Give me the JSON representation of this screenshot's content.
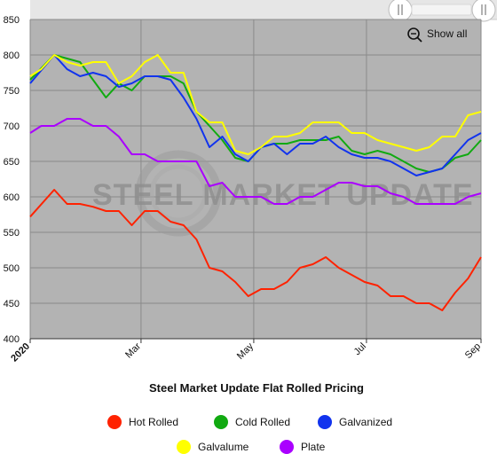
{
  "chart_data": {
    "type": "line",
    "title": "Steel Market Update Flat Rolled Pricing",
    "xlabel": "",
    "ylabel": "",
    "ylim": [
      400,
      850
    ],
    "y_ticks": [
      400,
      450,
      500,
      550,
      600,
      650,
      700,
      750,
      800,
      850
    ],
    "x_range": [
      "2020-01-01",
      "2020-09-01"
    ],
    "x_tick_labels": [
      {
        "date": "2020-01-01",
        "label": "2020"
      },
      {
        "date": "2020-03-01",
        "label": "Mar"
      },
      {
        "date": "2020-05-01",
        "label": "May"
      },
      {
        "date": "2020-07-01",
        "label": "Jul"
      },
      {
        "date": "2020-09-01",
        "label": "Sep"
      }
    ],
    "grid": true,
    "legend_position": "bottom",
    "watermark": "STEEL MARKET UPDATE",
    "series": [
      {
        "name": "Hot Rolled",
        "color": "#ff2200",
        "points": [
          [
            "2020-01-01",
            572
          ],
          [
            "2020-01-14",
            610
          ],
          [
            "2020-01-21",
            590
          ],
          [
            "2020-01-28",
            590
          ],
          [
            "2020-02-04",
            586
          ],
          [
            "2020-02-11",
            580
          ],
          [
            "2020-02-18",
            580
          ],
          [
            "2020-02-25",
            560
          ],
          [
            "2020-03-03",
            580
          ],
          [
            "2020-03-10",
            580
          ],
          [
            "2020-03-17",
            565
          ],
          [
            "2020-03-24",
            560
          ],
          [
            "2020-03-31",
            540
          ],
          [
            "2020-04-07",
            500
          ],
          [
            "2020-04-14",
            495
          ],
          [
            "2020-04-21",
            480
          ],
          [
            "2020-04-28",
            460
          ],
          [
            "2020-05-05",
            470
          ],
          [
            "2020-05-12",
            470
          ],
          [
            "2020-05-19",
            480
          ],
          [
            "2020-05-26",
            500
          ],
          [
            "2020-06-02",
            505
          ],
          [
            "2020-06-09",
            515
          ],
          [
            "2020-06-16",
            500
          ],
          [
            "2020-06-23",
            490
          ],
          [
            "2020-06-30",
            480
          ],
          [
            "2020-07-07",
            475
          ],
          [
            "2020-07-14",
            460
          ],
          [
            "2020-07-21",
            460
          ],
          [
            "2020-07-28",
            450
          ],
          [
            "2020-08-04",
            450
          ],
          [
            "2020-08-11",
            440
          ],
          [
            "2020-08-18",
            465
          ],
          [
            "2020-08-25",
            485
          ],
          [
            "2020-09-01",
            515
          ]
        ]
      },
      {
        "name": "Cold Rolled",
        "color": "#11aa11",
        "points": [
          [
            "2020-01-01",
            765
          ],
          [
            "2020-01-14",
            800
          ],
          [
            "2020-01-21",
            795
          ],
          [
            "2020-01-28",
            790
          ],
          [
            "2020-02-04",
            765
          ],
          [
            "2020-02-11",
            740
          ],
          [
            "2020-02-18",
            760
          ],
          [
            "2020-02-25",
            750
          ],
          [
            "2020-03-03",
            770
          ],
          [
            "2020-03-10",
            770
          ],
          [
            "2020-03-17",
            770
          ],
          [
            "2020-03-24",
            760
          ],
          [
            "2020-03-31",
            720
          ],
          [
            "2020-04-07",
            700
          ],
          [
            "2020-04-14",
            680
          ],
          [
            "2020-04-21",
            655
          ],
          [
            "2020-04-28",
            650
          ],
          [
            "2020-05-05",
            670
          ],
          [
            "2020-05-12",
            675
          ],
          [
            "2020-05-19",
            675
          ],
          [
            "2020-05-26",
            680
          ],
          [
            "2020-06-02",
            680
          ],
          [
            "2020-06-09",
            680
          ],
          [
            "2020-06-16",
            685
          ],
          [
            "2020-06-23",
            665
          ],
          [
            "2020-06-30",
            660
          ],
          [
            "2020-07-07",
            665
          ],
          [
            "2020-07-14",
            660
          ],
          [
            "2020-07-21",
            650
          ],
          [
            "2020-07-28",
            640
          ],
          [
            "2020-08-04",
            635
          ],
          [
            "2020-08-11",
            640
          ],
          [
            "2020-08-18",
            655
          ],
          [
            "2020-08-25",
            660
          ],
          [
            "2020-09-01",
            680
          ]
        ]
      },
      {
        "name": "Galvanized",
        "color": "#1133ee",
        "points": [
          [
            "2020-01-01",
            760
          ],
          [
            "2020-01-14",
            800
          ],
          [
            "2020-01-21",
            780
          ],
          [
            "2020-01-28",
            770
          ],
          [
            "2020-02-04",
            775
          ],
          [
            "2020-02-11",
            770
          ],
          [
            "2020-02-18",
            755
          ],
          [
            "2020-02-25",
            760
          ],
          [
            "2020-03-03",
            770
          ],
          [
            "2020-03-10",
            770
          ],
          [
            "2020-03-17",
            765
          ],
          [
            "2020-03-24",
            740
          ],
          [
            "2020-03-31",
            710
          ],
          [
            "2020-04-07",
            670
          ],
          [
            "2020-04-14",
            685
          ],
          [
            "2020-04-21",
            660
          ],
          [
            "2020-04-28",
            650
          ],
          [
            "2020-05-05",
            670
          ],
          [
            "2020-05-12",
            675
          ],
          [
            "2020-05-19",
            660
          ],
          [
            "2020-05-26",
            675
          ],
          [
            "2020-06-02",
            675
          ],
          [
            "2020-06-09",
            685
          ],
          [
            "2020-06-16",
            670
          ],
          [
            "2020-06-23",
            660
          ],
          [
            "2020-06-30",
            655
          ],
          [
            "2020-07-07",
            655
          ],
          [
            "2020-07-14",
            650
          ],
          [
            "2020-07-21",
            640
          ],
          [
            "2020-07-28",
            630
          ],
          [
            "2020-08-04",
            635
          ],
          [
            "2020-08-11",
            640
          ],
          [
            "2020-08-18",
            660
          ],
          [
            "2020-08-25",
            680
          ],
          [
            "2020-09-01",
            690
          ]
        ]
      },
      {
        "name": "Galvalume",
        "color": "#ffff00",
        "points": [
          [
            "2020-01-01",
            770
          ],
          [
            "2020-01-07",
            780
          ],
          [
            "2020-01-14",
            800
          ],
          [
            "2020-01-21",
            790
          ],
          [
            "2020-01-28",
            785
          ],
          [
            "2020-02-04",
            790
          ],
          [
            "2020-02-11",
            790
          ],
          [
            "2020-02-18",
            760
          ],
          [
            "2020-02-25",
            770
          ],
          [
            "2020-03-03",
            790
          ],
          [
            "2020-03-10",
            800
          ],
          [
            "2020-03-17",
            775
          ],
          [
            "2020-03-24",
            775
          ],
          [
            "2020-03-31",
            720
          ],
          [
            "2020-04-07",
            705
          ],
          [
            "2020-04-14",
            705
          ],
          [
            "2020-04-21",
            665
          ],
          [
            "2020-04-28",
            660
          ],
          [
            "2020-05-05",
            670
          ],
          [
            "2020-05-12",
            685
          ],
          [
            "2020-05-19",
            685
          ],
          [
            "2020-05-26",
            690
          ],
          [
            "2020-06-02",
            705
          ],
          [
            "2020-06-09",
            705
          ],
          [
            "2020-06-16",
            705
          ],
          [
            "2020-06-23",
            690
          ],
          [
            "2020-06-30",
            690
          ],
          [
            "2020-07-07",
            680
          ],
          [
            "2020-07-14",
            675
          ],
          [
            "2020-07-21",
            670
          ],
          [
            "2020-07-28",
            665
          ],
          [
            "2020-08-04",
            670
          ],
          [
            "2020-08-11",
            685
          ],
          [
            "2020-08-18",
            685
          ],
          [
            "2020-08-25",
            715
          ],
          [
            "2020-09-01",
            720
          ]
        ]
      },
      {
        "name": "Plate",
        "color": "#aa00ff",
        "points": [
          [
            "2020-01-01",
            690
          ],
          [
            "2020-01-07",
            700
          ],
          [
            "2020-01-14",
            700
          ],
          [
            "2020-01-21",
            710
          ],
          [
            "2020-01-28",
            710
          ],
          [
            "2020-02-04",
            700
          ],
          [
            "2020-02-11",
            700
          ],
          [
            "2020-02-18",
            685
          ],
          [
            "2020-02-25",
            660
          ],
          [
            "2020-03-03",
            660
          ],
          [
            "2020-03-10",
            650
          ],
          [
            "2020-03-17",
            650
          ],
          [
            "2020-03-24",
            650
          ],
          [
            "2020-03-31",
            650
          ],
          [
            "2020-04-07",
            615
          ],
          [
            "2020-04-14",
            620
          ],
          [
            "2020-04-21",
            600
          ],
          [
            "2020-04-28",
            600
          ],
          [
            "2020-05-05",
            600
          ],
          [
            "2020-05-12",
            590
          ],
          [
            "2020-05-19",
            590
          ],
          [
            "2020-05-26",
            600
          ],
          [
            "2020-06-02",
            600
          ],
          [
            "2020-06-09",
            610
          ],
          [
            "2020-06-16",
            620
          ],
          [
            "2020-06-23",
            620
          ],
          [
            "2020-06-30",
            615
          ],
          [
            "2020-07-07",
            615
          ],
          [
            "2020-07-14",
            605
          ],
          [
            "2020-07-21",
            600
          ],
          [
            "2020-07-28",
            590
          ],
          [
            "2020-08-04",
            590
          ],
          [
            "2020-08-11",
            590
          ],
          [
            "2020-08-18",
            590
          ],
          [
            "2020-08-25",
            600
          ],
          [
            "2020-09-01",
            605
          ]
        ]
      }
    ]
  },
  "controls": {
    "show_all_label": "Show all"
  },
  "colors": {
    "plot_background": "#b3b3b3",
    "grid": "#8a8a8a",
    "navigator_background": "#e8e8e8"
  }
}
